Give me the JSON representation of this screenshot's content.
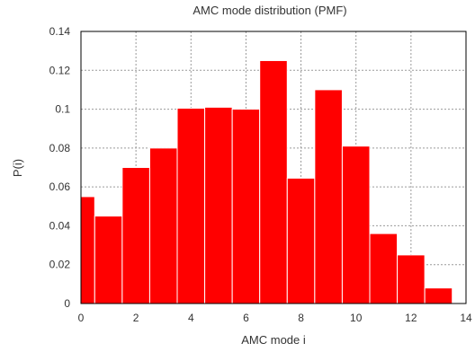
{
  "chart_data": {
    "type": "bar",
    "title": "AMC mode distribution (PMF)",
    "xlabel": "AMC mode i",
    "ylabel": "P(i)",
    "xlim": [
      0,
      14
    ],
    "ylim": [
      0,
      0.14
    ],
    "xticks": [
      "0",
      "2",
      "4",
      "6",
      "8",
      "10",
      "12",
      "14"
    ],
    "yticks": [
      "0",
      "0.02",
      "0.04",
      "0.06",
      "0.08",
      "0.1",
      "0.12",
      "0.14"
    ],
    "grid": true,
    "bar_color": "#ff0000",
    "x": [
      0,
      1,
      2,
      3,
      4,
      5,
      6,
      7,
      8,
      9,
      10,
      11,
      12,
      13
    ],
    "values": [
      0.055,
      0.045,
      0.07,
      0.08,
      0.1005,
      0.101,
      0.1,
      0.125,
      0.0645,
      0.11,
      0.081,
      0.036,
      0.025,
      0.008
    ]
  }
}
